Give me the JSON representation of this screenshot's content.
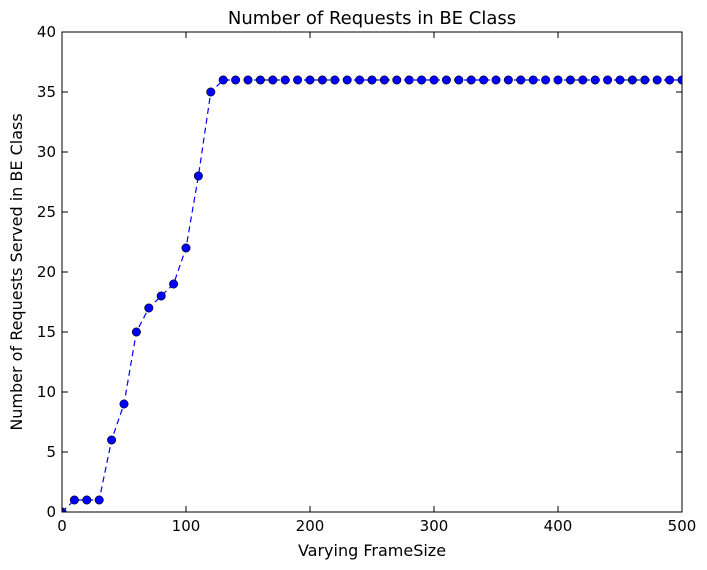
{
  "chart_data": {
    "type": "line",
    "title": "Number of Requests in BE Class",
    "xlabel": "Varying FrameSize",
    "ylabel": "Number of Requests Served in BE Class",
    "xlim": [
      0,
      500
    ],
    "ylim": [
      0,
      40
    ],
    "xticks": [
      0,
      100,
      200,
      300,
      400,
      500
    ],
    "yticks": [
      0,
      5,
      10,
      15,
      20,
      25,
      30,
      35,
      40
    ],
    "grid": false,
    "line_style": "dashed",
    "marker": "circle",
    "color": "#0000ff",
    "series": [
      {
        "x": [
          0,
          10,
          20,
          30,
          40,
          50,
          60,
          70,
          80,
          90,
          100,
          110,
          120,
          130,
          140,
          150,
          160,
          170,
          180,
          190,
          200,
          210,
          220,
          230,
          240,
          250,
          260,
          270,
          280,
          290,
          300,
          310,
          320,
          330,
          340,
          350,
          360,
          370,
          380,
          390,
          400,
          410,
          420,
          430,
          440,
          450,
          460,
          470,
          480,
          490,
          500
        ],
        "y": [
          0,
          1,
          1,
          1,
          6,
          9,
          15,
          17,
          18,
          19,
          22,
          28,
          35,
          36,
          36,
          36,
          36,
          36,
          36,
          36,
          36,
          36,
          36,
          36,
          36,
          36,
          36,
          36,
          36,
          36,
          36,
          36,
          36,
          36,
          36,
          36,
          36,
          36,
          36,
          36,
          36,
          36,
          36,
          36,
          36,
          36,
          36,
          36,
          36,
          36,
          36
        ]
      }
    ]
  }
}
